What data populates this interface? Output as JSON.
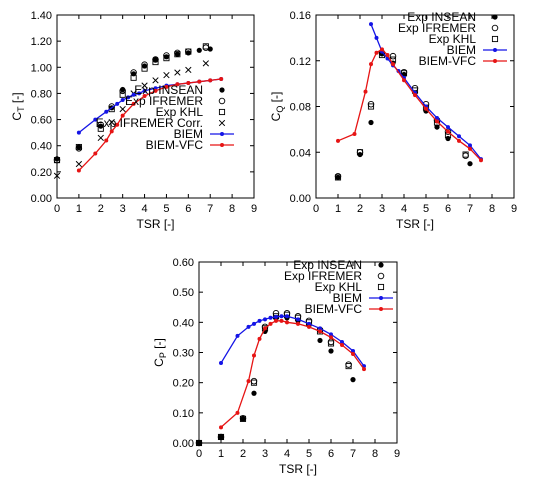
{
  "chart_data": [
    {
      "id": "ct",
      "type": "scatter",
      "ylabel_main": "C",
      "ylabel_sub": "T",
      "ylabel_unit": " [-]",
      "xlabel": "TSR [-]",
      "xlim": [
        0,
        9
      ],
      "ylim": [
        0,
        1.4
      ],
      "xticks": [
        "0",
        "1",
        "2",
        "3",
        "4",
        "5",
        "6",
        "7",
        "8",
        "9"
      ],
      "yticks": [
        "0.00",
        "0.20",
        "0.40",
        "0.60",
        "0.80",
        "1.00",
        "1.20",
        "1.40"
      ],
      "legend_position": "bottom-right",
      "series": [
        {
          "name": "Exp INSEAN",
          "marker": "filled-circle",
          "color": "#000000",
          "x": [
            0,
            1,
            2,
            2.5,
            3,
            3.5,
            4,
            4.5,
            5,
            5.5,
            6,
            6.5,
            7
          ],
          "y": [
            0.3,
            0.39,
            0.55,
            0.69,
            0.83,
            0.95,
            1.01,
            1.06,
            1.08,
            1.1,
            1.11,
            1.13,
            1.14
          ]
        },
        {
          "name": "Exp IFREMER",
          "marker": "open-circle",
          "color": "#000000",
          "x": [
            0,
            1,
            2,
            2.5,
            3,
            3.5,
            4,
            4.5,
            5,
            5.5,
            6,
            6.8
          ],
          "y": [
            0.29,
            0.38,
            0.56,
            0.7,
            0.82,
            0.96,
            1.02,
            1.06,
            1.09,
            1.11,
            1.12,
            1.15
          ]
        },
        {
          "name": "Exp KHL",
          "marker": "open-square",
          "color": "#000000",
          "x": [
            0,
            1,
            2,
            2.5,
            3,
            3.5,
            4,
            4.5,
            5,
            5.5,
            6,
            6.8
          ],
          "y": [
            0.29,
            0.39,
            0.53,
            0.68,
            0.79,
            0.92,
            0.99,
            1.04,
            1.07,
            1.1,
            1.12,
            1.16
          ]
        },
        {
          "name": "Exp IFREMER Corr.",
          "marker": "cross",
          "color": "#000000",
          "x": [
            0,
            1,
            2,
            2.5,
            3,
            3.5,
            4,
            4.5,
            5,
            5.5,
            6,
            6.8
          ],
          "y": [
            0.17,
            0.26,
            0.46,
            0.58,
            0.68,
            0.8,
            0.86,
            0.9,
            0.94,
            0.96,
            0.98,
            1.03
          ]
        },
        {
          "name": "BIEM",
          "marker": "dot-line",
          "color": "#1414e6",
          "x": [
            1,
            1.75,
            2.25,
            2.75,
            3,
            3.25,
            3.5,
            3.75,
            4,
            4.5,
            5,
            5.5,
            6,
            6.5,
            7,
            7.5
          ],
          "y": [
            0.5,
            0.6,
            0.66,
            0.72,
            0.75,
            0.77,
            0.79,
            0.8,
            0.82,
            0.84,
            0.86,
            0.87,
            0.88,
            0.89,
            0.9,
            0.91
          ]
        },
        {
          "name": "BIEM-VFC",
          "marker": "dot-line",
          "color": "#e61414",
          "x": [
            1,
            1.75,
            2.25,
            2.5,
            2.75,
            3,
            3.5,
            4,
            4.5,
            5,
            5.5,
            6,
            6.5,
            7,
            7.5
          ],
          "y": [
            0.21,
            0.34,
            0.44,
            0.51,
            0.56,
            0.63,
            0.72,
            0.78,
            0.82,
            0.85,
            0.87,
            0.88,
            0.89,
            0.9,
            0.91
          ]
        }
      ]
    },
    {
      "id": "cq",
      "type": "scatter",
      "ylabel_main": "C",
      "ylabel_sub": "Q",
      "ylabel_unit": " [-]",
      "xlabel": "TSR [-]",
      "xlim": [
        0,
        9
      ],
      "ylim": [
        0,
        0.16
      ],
      "xticks": [
        "0",
        "1",
        "2",
        "3",
        "4",
        "5",
        "6",
        "7",
        "8",
        "9"
      ],
      "yticks": [
        "0.00",
        "0.04",
        "0.08",
        "0.12",
        "0.16"
      ],
      "legend_position": "top-right",
      "series": [
        {
          "name": "Exp INSEAN",
          "marker": "filled-circle",
          "color": "#000000",
          "x": [
            1,
            2,
            2.5,
            3,
            3.5,
            4,
            4.5,
            5,
            5.5,
            6,
            7
          ],
          "y": [
            0.018,
            0.038,
            0.066,
            0.126,
            0.118,
            0.108,
            0.092,
            0.076,
            0.062,
            0.052,
            0.03
          ]
        },
        {
          "name": "Exp IFREMER",
          "marker": "open-circle",
          "color": "#000000",
          "x": [
            1,
            2,
            2.5,
            3,
            3.5,
            4,
            4.5,
            5,
            5.5,
            6,
            6.8
          ],
          "y": [
            0.019,
            0.04,
            0.082,
            0.127,
            0.124,
            0.11,
            0.096,
            0.082,
            0.068,
            0.058,
            0.037
          ]
        },
        {
          "name": "Exp KHL",
          "marker": "open-square",
          "color": "#000000",
          "x": [
            1,
            2,
            2.5,
            3,
            3.5,
            4,
            4.5,
            5,
            5.5,
            6,
            6.8
          ],
          "y": [
            0.018,
            0.04,
            0.08,
            0.125,
            0.121,
            0.109,
            0.094,
            0.079,
            0.066,
            0.055,
            0.038
          ]
        },
        {
          "name": "BIEM",
          "marker": "dot-line",
          "color": "#1414e6",
          "x": [
            2.5,
            2.75,
            3,
            3.25,
            3.5,
            3.75,
            4,
            4.5,
            5,
            5.5,
            6,
            6.5,
            7,
            7.5
          ],
          "y": [
            0.152,
            0.14,
            0.128,
            0.122,
            0.116,
            0.111,
            0.105,
            0.092,
            0.08,
            0.07,
            0.062,
            0.054,
            0.046,
            0.034
          ]
        },
        {
          "name": "BIEM-VFC",
          "marker": "dot-line",
          "color": "#e61414",
          "x": [
            1,
            1.75,
            2.25,
            2.5,
            2.75,
            3,
            3.25,
            3.5,
            4,
            4.5,
            5,
            5.5,
            6,
            6.5,
            7,
            7.5
          ],
          "y": [
            0.05,
            0.056,
            0.093,
            0.117,
            0.127,
            0.13,
            0.125,
            0.117,
            0.103,
            0.09,
            0.078,
            0.067,
            0.058,
            0.05,
            0.043,
            0.033
          ]
        }
      ]
    },
    {
      "id": "cp",
      "type": "scatter",
      "ylabel_main": "C",
      "ylabel_sub": "P",
      "ylabel_unit": " [-]",
      "xlabel": "TSR [-]",
      "xlim": [
        0,
        9
      ],
      "ylim": [
        0,
        0.6
      ],
      "xticks": [
        "0",
        "1",
        "2",
        "3",
        "4",
        "5",
        "6",
        "7",
        "8",
        "9"
      ],
      "yticks": [
        "0.00",
        "0.10",
        "0.20",
        "0.30",
        "0.40",
        "0.50",
        "0.60"
      ],
      "legend_position": "top-right",
      "series": [
        {
          "name": "Exp INSEAN",
          "marker": "filled-circle",
          "color": "#000000",
          "x": [
            0,
            1,
            2,
            2.5,
            3,
            3.5,
            4,
            4.5,
            5,
            5.5,
            6,
            7
          ],
          "y": [
            0.0,
            0.02,
            0.08,
            0.165,
            0.37,
            0.415,
            0.415,
            0.405,
            0.39,
            0.34,
            0.305,
            0.21
          ]
        },
        {
          "name": "Exp IFREMER",
          "marker": "open-circle",
          "color": "#000000",
          "x": [
            0,
            1,
            2,
            2.5,
            3,
            3.5,
            4,
            4.5,
            5,
            5.5,
            6,
            6.8
          ],
          "y": [
            0.0,
            0.02,
            0.082,
            0.205,
            0.385,
            0.43,
            0.43,
            0.42,
            0.405,
            0.375,
            0.335,
            0.26
          ]
        },
        {
          "name": "Exp KHL",
          "marker": "open-square",
          "color": "#000000",
          "x": [
            0,
            1,
            2,
            2.5,
            3,
            3.5,
            4,
            4.5,
            5,
            5.5,
            6,
            6.8
          ],
          "y": [
            0.0,
            0.02,
            0.08,
            0.2,
            0.38,
            0.42,
            0.425,
            0.415,
            0.4,
            0.37,
            0.33,
            0.255
          ]
        },
        {
          "name": "BIEM",
          "marker": "dot-line",
          "color": "#1414e6",
          "x": [
            1,
            1.75,
            2.25,
            2.5,
            2.75,
            3,
            3.25,
            3.5,
            3.75,
            4,
            4.5,
            5,
            5.5,
            6,
            6.5,
            7,
            7.5
          ],
          "y": [
            0.265,
            0.355,
            0.385,
            0.395,
            0.405,
            0.41,
            0.415,
            0.418,
            0.42,
            0.42,
            0.41,
            0.395,
            0.38,
            0.36,
            0.335,
            0.305,
            0.255
          ]
        },
        {
          "name": "BIEM-VFC",
          "marker": "dot-line",
          "color": "#e61414",
          "x": [
            1,
            1.75,
            2.25,
            2.5,
            2.75,
            3,
            3.25,
            3.5,
            3.75,
            4,
            4.5,
            5,
            5.5,
            6,
            6.5,
            7,
            7.5
          ],
          "y": [
            0.052,
            0.1,
            0.205,
            0.29,
            0.345,
            0.38,
            0.395,
            0.405,
            0.405,
            0.4,
            0.395,
            0.385,
            0.37,
            0.35,
            0.325,
            0.295,
            0.245
          ]
        }
      ]
    }
  ]
}
